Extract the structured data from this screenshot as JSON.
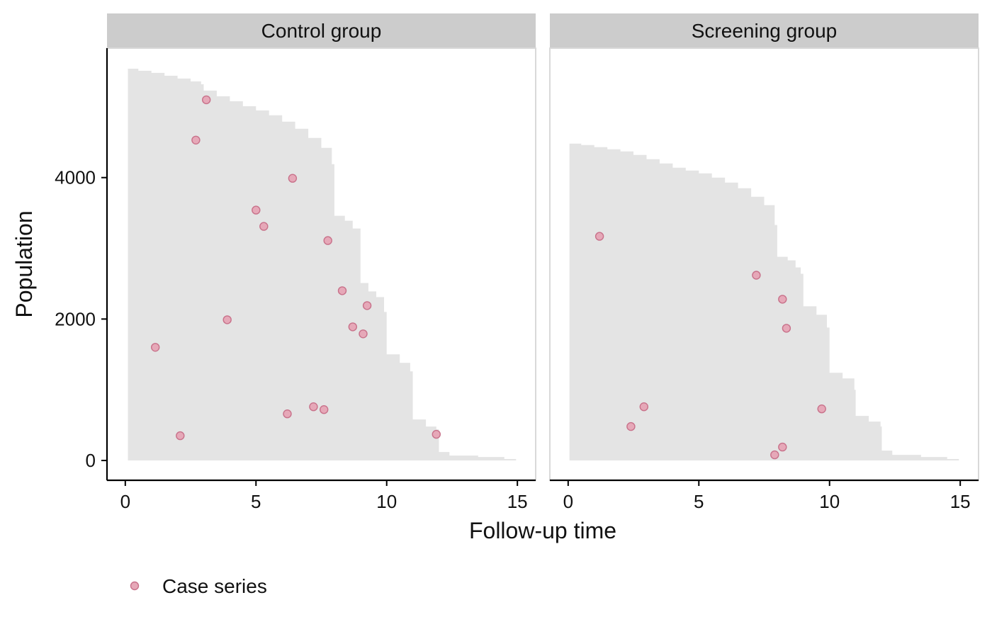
{
  "chart_data": {
    "type": "scatter",
    "xlabel": "Follow-up time",
    "ylabel": "Population",
    "xlim": [
      -0.7,
      15.7
    ],
    "ylim": [
      -280,
      5830
    ],
    "x_ticks": [
      0,
      5,
      10,
      15
    ],
    "y_ticks": [
      0,
      2000,
      4000
    ],
    "grid": false,
    "legend": {
      "position": "bottom-left",
      "entries": [
        {
          "label": "Case series",
          "color": "#e6a8b8"
        }
      ]
    },
    "colors": {
      "area_fill": "#e4e4e4",
      "strip_bg": "#cccccc",
      "point_fill": "#e6a8b8",
      "point_stroke": "#c8718a",
      "axis": "#000000",
      "panel_border": "#d9d9d9"
    },
    "panels": [
      {
        "strip": "Control group",
        "population_at_risk": [
          [
            0.1,
            5540
          ],
          [
            0.5,
            5510
          ],
          [
            1.0,
            5480
          ],
          [
            1.5,
            5440
          ],
          [
            2.0,
            5400
          ],
          [
            2.5,
            5360
          ],
          [
            2.9,
            5320
          ],
          [
            3.0,
            5230
          ],
          [
            3.5,
            5150
          ],
          [
            4.0,
            5080
          ],
          [
            4.5,
            5010
          ],
          [
            5.0,
            4950
          ],
          [
            5.5,
            4880
          ],
          [
            6.0,
            4790
          ],
          [
            6.5,
            4690
          ],
          [
            7.0,
            4560
          ],
          [
            7.5,
            4420
          ],
          [
            7.9,
            4190
          ],
          [
            8.0,
            3460
          ],
          [
            8.4,
            3390
          ],
          [
            8.7,
            3280
          ],
          [
            9.0,
            2510
          ],
          [
            9.3,
            2390
          ],
          [
            9.6,
            2310
          ],
          [
            9.9,
            2100
          ],
          [
            10.0,
            1500
          ],
          [
            10.5,
            1380
          ],
          [
            10.9,
            1260
          ],
          [
            11.0,
            580
          ],
          [
            11.5,
            480
          ],
          [
            11.9,
            440
          ],
          [
            12.0,
            120
          ],
          [
            12.4,
            70
          ],
          [
            13.5,
            50
          ],
          [
            14.5,
            20
          ],
          [
            14.95,
            0
          ]
        ],
        "points": [
          {
            "x": 3.1,
            "y": 5100
          },
          {
            "x": 2.7,
            "y": 4530
          },
          {
            "x": 6.4,
            "y": 3990
          },
          {
            "x": 5.0,
            "y": 3540
          },
          {
            "x": 5.3,
            "y": 3310
          },
          {
            "x": 7.75,
            "y": 3110
          },
          {
            "x": 8.3,
            "y": 2400
          },
          {
            "x": 9.25,
            "y": 2190
          },
          {
            "x": 3.9,
            "y": 1990
          },
          {
            "x": 8.7,
            "y": 1890
          },
          {
            "x": 9.1,
            "y": 1790
          },
          {
            "x": 1.15,
            "y": 1600
          },
          {
            "x": 7.2,
            "y": 760
          },
          {
            "x": 7.6,
            "y": 720
          },
          {
            "x": 6.2,
            "y": 660
          },
          {
            "x": 2.1,
            "y": 350
          },
          {
            "x": 11.9,
            "y": 370
          }
        ]
      },
      {
        "strip": "Screening group",
        "population_at_risk": [
          [
            0.05,
            4480
          ],
          [
            0.5,
            4460
          ],
          [
            1.0,
            4430
          ],
          [
            1.5,
            4400
          ],
          [
            2.0,
            4370
          ],
          [
            2.5,
            4320
          ],
          [
            3.0,
            4260
          ],
          [
            3.5,
            4200
          ],
          [
            4.0,
            4140
          ],
          [
            4.5,
            4100
          ],
          [
            5.0,
            4060
          ],
          [
            5.5,
            4000
          ],
          [
            6.0,
            3930
          ],
          [
            6.5,
            3850
          ],
          [
            7.0,
            3730
          ],
          [
            7.5,
            3610
          ],
          [
            7.9,
            3330
          ],
          [
            8.0,
            2880
          ],
          [
            8.4,
            2830
          ],
          [
            8.7,
            2730
          ],
          [
            8.9,
            2640
          ],
          [
            9.0,
            2180
          ],
          [
            9.5,
            2060
          ],
          [
            9.9,
            1880
          ],
          [
            10.0,
            1240
          ],
          [
            10.5,
            1160
          ],
          [
            10.95,
            1000
          ],
          [
            11.0,
            630
          ],
          [
            11.5,
            550
          ],
          [
            11.95,
            480
          ],
          [
            12.0,
            140
          ],
          [
            12.4,
            80
          ],
          [
            13.5,
            50
          ],
          [
            14.5,
            20
          ],
          [
            14.95,
            0
          ]
        ],
        "points": [
          {
            "x": 1.2,
            "y": 3170
          },
          {
            "x": 7.2,
            "y": 2620
          },
          {
            "x": 8.2,
            "y": 2280
          },
          {
            "x": 8.35,
            "y": 1870
          },
          {
            "x": 2.9,
            "y": 760
          },
          {
            "x": 9.7,
            "y": 730
          },
          {
            "x": 2.4,
            "y": 480
          },
          {
            "x": 8.2,
            "y": 190
          },
          {
            "x": 7.9,
            "y": 80
          }
        ]
      }
    ]
  }
}
